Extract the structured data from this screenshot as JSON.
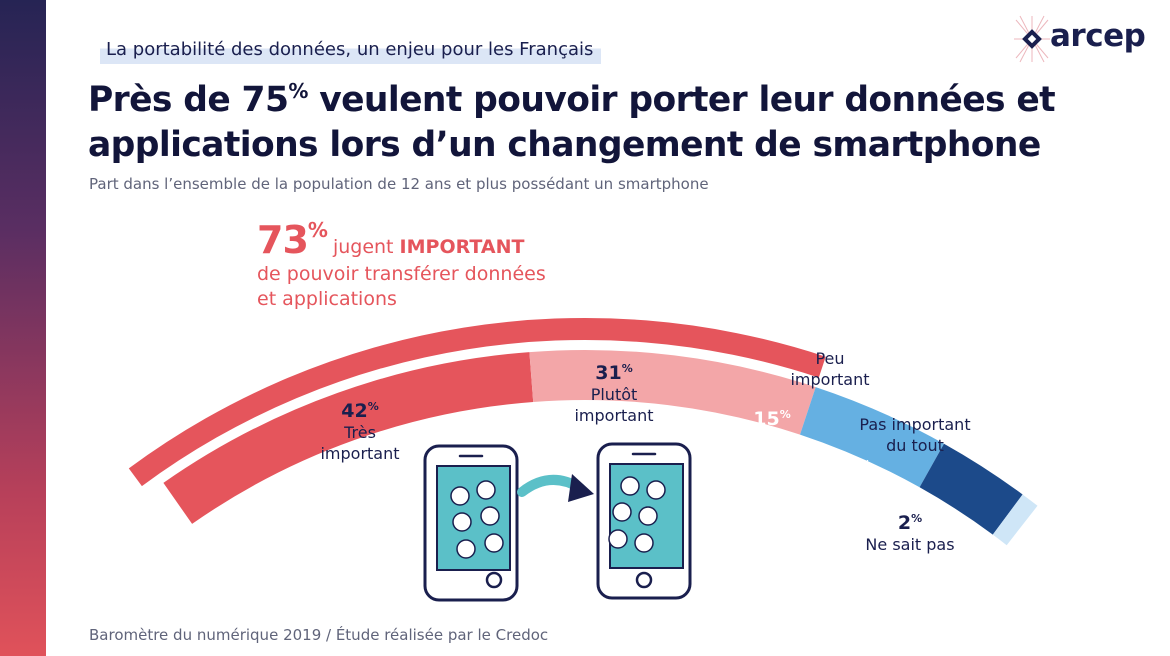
{
  "header": {
    "kicker": "La portabilité des données, un enjeu pour les Français",
    "title_line1_pre": "Près de 75",
    "title_line1_sup": "%",
    "title_line1_post": " veulent pouvoir porter leur données et",
    "title_line2": "applications lors d’un changement de smartphone",
    "subtitle": "Part dans l’ensemble de la population de 12 ans et plus possédant un smartphone"
  },
  "logo": {
    "text": "arcep",
    "icon": "arcep-logo-icon"
  },
  "callout": {
    "value": "73",
    "unit": "%",
    "line1_pre": "jugent ",
    "line1_bold": "IMPORTANT",
    "line2": "de pouvoir transférer données",
    "line3": "et applications"
  },
  "chart_data": {
    "type": "pie",
    "layout": "semicircle-arc",
    "unit": "%",
    "slices": [
      {
        "value": 42,
        "label_line1": "Très",
        "label_line2": "important",
        "color": "#e5555c"
      },
      {
        "value": 31,
        "label_line1": "Plutôt",
        "label_line2": "important",
        "color": "#f3a6a8"
      },
      {
        "value": 15,
        "label_line1": "Peu",
        "label_line2": "important",
        "color": "#65b0e2"
      },
      {
        "value": 10,
        "label_line1": "Pas important",
        "label_line2": "du tout",
        "color": "#1c4a8a"
      },
      {
        "value": 2,
        "label_line1": "Ne sait pas",
        "label_line2": "",
        "color": "#cfe6f7"
      }
    ],
    "group": {
      "value": 73,
      "covers": [
        "Très important",
        "Plutôt important"
      ],
      "color": "#e5555c"
    }
  },
  "illustration": {
    "icons": [
      "smartphone-icon",
      "transfer-arrow-icon",
      "smartphone-icon"
    ],
    "phone_color": "#5bc0c8"
  },
  "footer": {
    "source": "Baromètre du numérique 2019 / Étude réalisée par le Credoc"
  }
}
